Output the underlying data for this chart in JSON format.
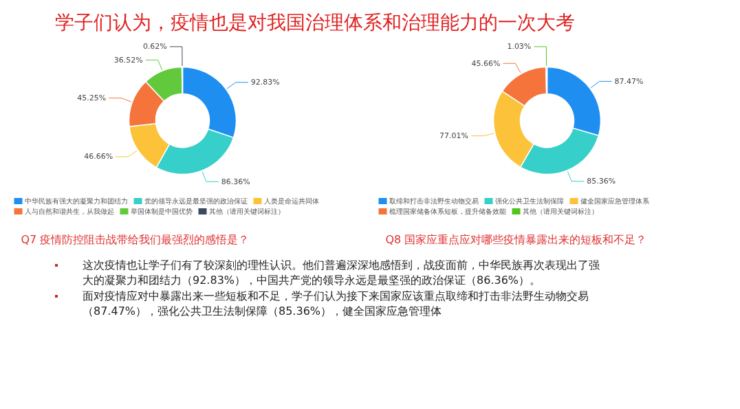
{
  "chart_data": [
    {
      "type": "donut",
      "title": "Q7 疫情防控阻击战带给我们最强烈的感悟是？",
      "categories": [
        "中华民族有强大的凝聚力和团结力",
        "党的领导永远是最坚强的政治保证",
        "人类是命运共同体",
        "人与自然和谐共生，从我做起",
        "举国体制是中国优势",
        "其他（请用关键词标注）"
      ],
      "values": [
        92.83,
        86.36,
        46.66,
        45.25,
        36.52,
        0.62
      ],
      "value_labels": [
        "92.83%",
        "86.36%",
        "46.66%",
        "45.25%",
        "36.52%",
        "0.62%"
      ],
      "colors": [
        "#1e8ff0",
        "#36cfc9",
        "#fbc23a",
        "#f4743b",
        "#62c93d",
        "#3b4a5e"
      ],
      "legend": "bottom",
      "annotations": [
        "学子们认为，疫情也是对我国治理体系和治理能力的一次大考",
        "这次疫情也让学子们有了较深刻的理性认识。他们普遍深深地感悟到，战疫面前，中华民族再次表现出了强大的凝聚力和团结力（92.83%），中国共产党的领导永远是最坚强的政治保证（86.36%）。"
      ]
    },
    {
      "type": "donut",
      "title": "Q8 国家应重点应对哪些疫情暴露出来的短板和不足？",
      "categories": [
        "取缔和打击非法野生动物交易",
        "强化公共卫生法制保障",
        "健全国家应急管理体系",
        "梳理国家储备体系短板，提升储备效能",
        "其他（请用关键词标注）"
      ],
      "values": [
        87.47,
        85.36,
        77.01,
        45.66,
        1.03
      ],
      "value_labels": [
        "87.47%",
        "85.36%",
        "77.01%",
        "45.66%",
        "1.03%"
      ],
      "colors": [
        "#1e8ff0",
        "#36cfc9",
        "#fbc23a",
        "#f4743b",
        "#52c41a"
      ],
      "legend": "bottom",
      "annotations": [
        "面对疫情应对中暴露出来一些短板和不足，学子们认为接下来国家应该重点取缔和打击非法野生动物交易（87.47%），强化公共卫生法制保障（85.36%），健全国家应急管理体"
      ]
    }
  ]
}
